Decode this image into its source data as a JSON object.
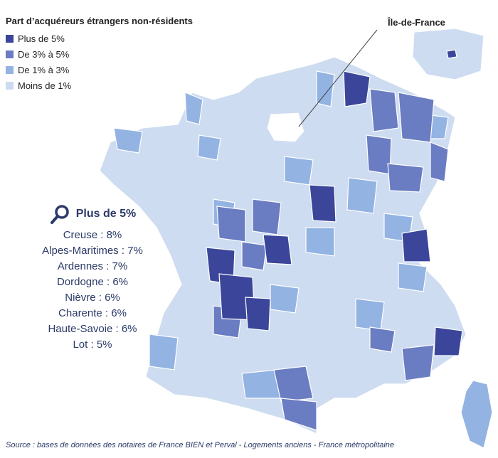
{
  "legend": {
    "title": "Part d’acquéreurs étrangers non-résidents",
    "items": [
      {
        "label": "Plus de 5%",
        "color": "#3b469a"
      },
      {
        "label": "De 3% à 5%",
        "color": "#6a7cc2"
      },
      {
        "label": "De 1% à 3%",
        "color": "#93b3e2"
      },
      {
        "label": "Moins de 1%",
        "color": "#cddcf0"
      }
    ]
  },
  "inset_label": "Île-de-France",
  "highlight": {
    "title": "Plus de 5%",
    "icon": "magnifier-icon",
    "items": [
      "Creuse : 8%",
      "Alpes-Maritimes : 7%",
      "Ardennes : 7%",
      "Dordogne : 6%",
      "Nièvre : 6%",
      "Charente : 6%",
      "Haute-Savoie : 6%",
      "Lot : 5%"
    ]
  },
  "source": "Source : bases de données des notaires de France BIEN et Perval - Logements anciens - France métropolitaine"
}
